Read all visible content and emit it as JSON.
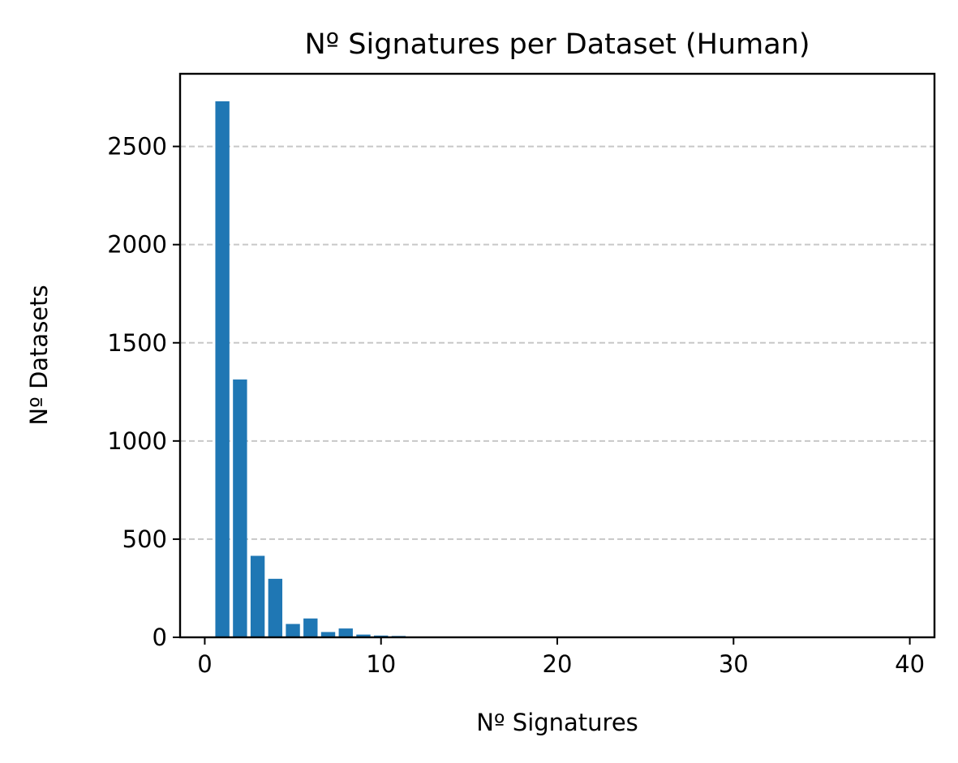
{
  "chart_data": {
    "type": "bar",
    "title": "Nº Signatures per Dataset (Human)",
    "xlabel": "Nº Signatures",
    "ylabel": "Nº Datasets",
    "xlim": [
      -1.4,
      41.4
    ],
    "ylim": [
      0,
      2870
    ],
    "xticks": [
      0,
      10,
      20,
      30,
      40
    ],
    "yticks": [
      0,
      500,
      1000,
      1500,
      2000,
      2500
    ],
    "grid": {
      "axis": "y",
      "style": "dashed"
    },
    "bar_color": "#1f77b4",
    "x": [
      1,
      2,
      3,
      4,
      5,
      6,
      7,
      8,
      9,
      10,
      11,
      12,
      13,
      14,
      15,
      16,
      25,
      36
    ],
    "values": [
      2730,
      1313,
      415,
      298,
      68,
      96,
      27,
      45,
      14,
      9,
      7,
      4,
      4,
      3,
      3,
      3,
      2,
      2
    ]
  }
}
